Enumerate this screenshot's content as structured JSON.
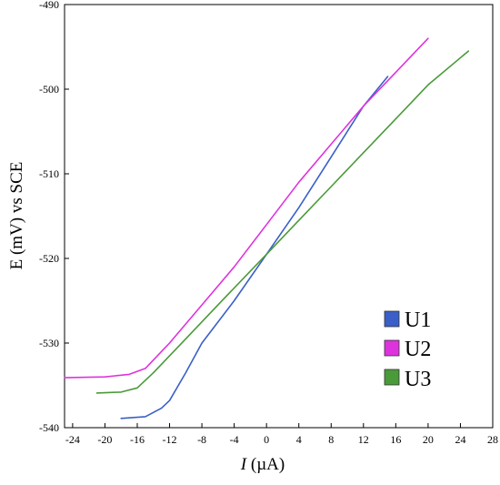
{
  "chart_data": {
    "type": "line",
    "xlabel_italic": "I",
    "xlabel_unit": " (µA)",
    "ylabel": "E (mV) vs SCE",
    "xlim": [
      -25,
      28
    ],
    "ylim": [
      -540,
      -490
    ],
    "x_ticks": [
      "-24",
      "-20",
      "-16",
      "-12",
      "-8",
      "-4",
      "0",
      "4",
      "8",
      "12",
      "16",
      "20",
      "24",
      "28"
    ],
    "x_tick_values": [
      -24,
      -20,
      -16,
      -12,
      -8,
      -4,
      0,
      4,
      8,
      12,
      16,
      20,
      24,
      28
    ],
    "y_ticks": [
      "-490",
      "-500",
      "-510",
      "-520",
      "-530",
      "-540"
    ],
    "y_tick_values": [
      -490,
      -500,
      -510,
      -520,
      -530,
      -540
    ],
    "grid": false,
    "legend_position": "bottom-right",
    "series": [
      {
        "name": "U1",
        "color": "#3a5fc8",
        "points": [
          [
            -18,
            -538.9
          ],
          [
            -15,
            -538.7
          ],
          [
            -13,
            -537.7
          ],
          [
            -12,
            -536.8
          ],
          [
            -10,
            -533.5
          ],
          [
            -8,
            -530.0
          ],
          [
            -4,
            -525.0
          ],
          [
            0,
            -519.5
          ],
          [
            4,
            -514.0
          ],
          [
            8,
            -508.0
          ],
          [
            12,
            -502.0
          ],
          [
            15,
            -498.5
          ]
        ]
      },
      {
        "name": "U2",
        "color": "#dd33dd",
        "points": [
          [
            -25,
            -534.1
          ],
          [
            -20,
            -534.0
          ],
          [
            -17,
            -533.7
          ],
          [
            -15,
            -533.0
          ],
          [
            -12,
            -530.0
          ],
          [
            -8,
            -525.5
          ],
          [
            -4,
            -521.0
          ],
          [
            0,
            -516.0
          ],
          [
            4,
            -511.0
          ],
          [
            8,
            -506.5
          ],
          [
            12,
            -502.0
          ],
          [
            16,
            -498.0
          ],
          [
            20,
            -494.0
          ]
        ]
      },
      {
        "name": "U3",
        "color": "#4a9a3a",
        "points": [
          [
            -21,
            -535.9
          ],
          [
            -18,
            -535.8
          ],
          [
            -16,
            -535.3
          ],
          [
            -14,
            -533.5
          ],
          [
            -10,
            -529.5
          ],
          [
            -6,
            -525.5
          ],
          [
            -2,
            -521.5
          ],
          [
            0,
            -519.5
          ],
          [
            4,
            -515.5
          ],
          [
            8,
            -511.5
          ],
          [
            12,
            -507.5
          ],
          [
            16,
            -503.5
          ],
          [
            20,
            -499.5
          ],
          [
            25,
            -495.5
          ]
        ]
      }
    ]
  }
}
